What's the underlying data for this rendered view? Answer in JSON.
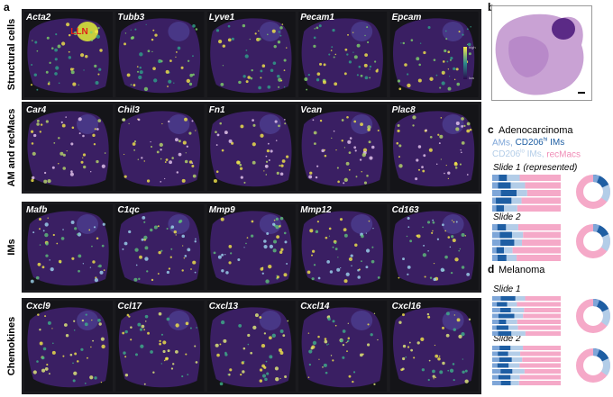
{
  "panel_a": {
    "label": "a",
    "annotation": "LLN",
    "colorbar_high": "high",
    "colorbar_low": "low",
    "rows": [
      {
        "name": "Structural cells",
        "genes": [
          "Acta2",
          "Tubb3",
          "Lyve1",
          "Pecam1",
          "Epcam"
        ]
      },
      {
        "name": "AM and recMacs",
        "genes": [
          "Car4",
          "Chil3",
          "Fn1",
          "Vcan",
          "Plac8"
        ]
      },
      {
        "name": "IMs",
        "genes": [
          "Mafb",
          "C1qc",
          "Mmp9",
          "Mmp12",
          "Cd163"
        ]
      },
      {
        "name": "Chemokines",
        "genes": [
          "Cxcl9",
          "Ccl17",
          "Cxcl13",
          "Cxcl14",
          "Cxcl16"
        ]
      }
    ]
  },
  "panel_b": {
    "label": "b"
  },
  "panel_c": {
    "label": "c",
    "title": "Adenocarcinoma",
    "legend": {
      "am": "AMs,",
      "hi": "CD206",
      "hi_sup": "hi",
      "hi_suffix": "IMs",
      "lo": "CD206",
      "lo_sup": "lo",
      "lo_suffix": "IMs,",
      "rec": "recMacs"
    },
    "slides": [
      "Slide 1 (represented)",
      "Slide 2"
    ]
  },
  "panel_d": {
    "label": "d",
    "title": "Melanoma",
    "slides": [
      "Slide 1",
      "Slide 2"
    ]
  }
}
